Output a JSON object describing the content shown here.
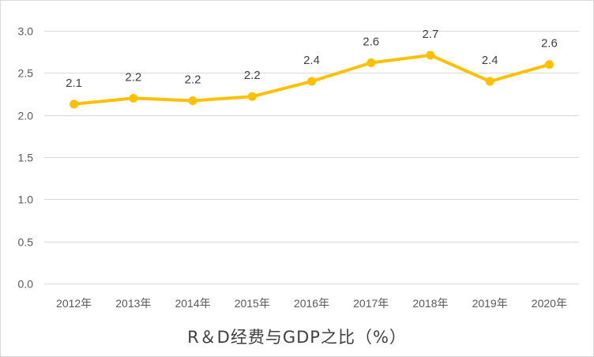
{
  "chart_data": {
    "type": "line",
    "title": "",
    "xlabel": "",
    "ylabel": "",
    "caption": "R＆D经费与GDP之比（%）",
    "categories": [
      "2012年",
      "2013年",
      "2014年",
      "2015年",
      "2016年",
      "2017年",
      "2018年",
      "2019年",
      "2020年"
    ],
    "values": [
      2.13,
      2.2,
      2.17,
      2.22,
      2.4,
      2.62,
      2.71,
      2.4,
      2.6
    ],
    "data_labels": [
      "2.1",
      "2.2",
      "2.2",
      "2.2",
      "2.4",
      "2.6",
      "2.7",
      "2.4",
      "2.6"
    ],
    "ylim": [
      0,
      3.0
    ],
    "yticks": [
      "0.0",
      "0.5",
      "1.0",
      "1.5",
      "2.0",
      "2.5",
      "3.0"
    ],
    "grid": true,
    "legend": "none",
    "color": "#ffc000",
    "gridColor": "#d9d9d9"
  }
}
